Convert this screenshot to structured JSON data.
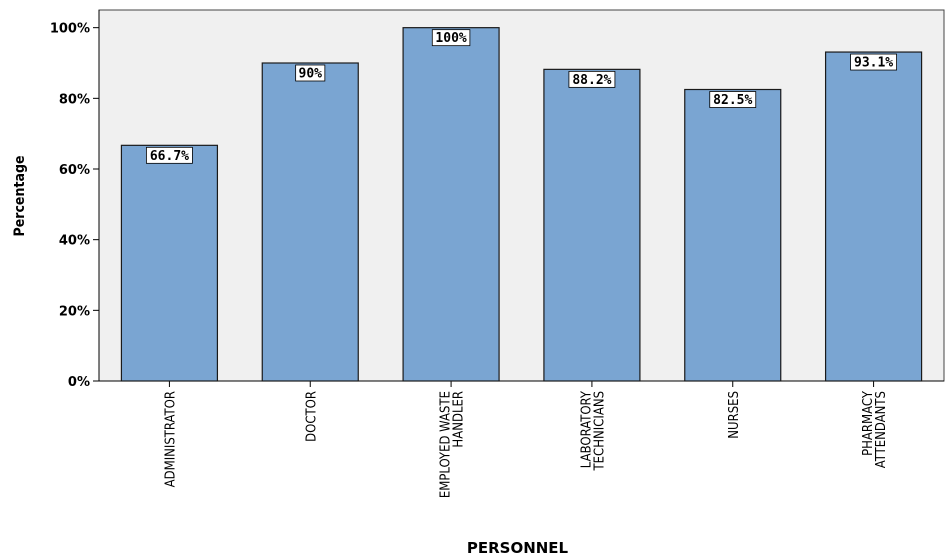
{
  "chart_data": {
    "type": "bar",
    "categories": [
      [
        "ADMINISTRATOR"
      ],
      [
        "DOCTOR"
      ],
      [
        "EMPLOYED WASTE",
        "HANDLER"
      ],
      [
        "LABORATORY",
        "TECHNICIANS"
      ],
      [
        "NURSES"
      ],
      [
        "PHARMACY",
        "ATTENDANTS"
      ]
    ],
    "values": [
      66.7,
      90,
      100,
      88.2,
      82.5,
      93.1
    ],
    "data_labels": [
      "66.7%",
      "90%",
      "100%",
      "88.2%",
      "82.5%",
      "93.1%"
    ],
    "yticks": [
      0,
      20,
      40,
      60,
      80,
      100
    ],
    "ytick_labels": [
      "0%",
      "20%",
      "40%",
      "60%",
      "80%",
      "100%"
    ],
    "ylim": [
      0,
      105
    ],
    "xlabel": "PERSONNEL",
    "ylabel": "Percentage",
    "colors": {
      "bar_fill": "#7aa5d2",
      "bar_stroke": "#1a1a1a",
      "plot_background": "#f0f0f0",
      "label_box": "#ffffff"
    }
  }
}
